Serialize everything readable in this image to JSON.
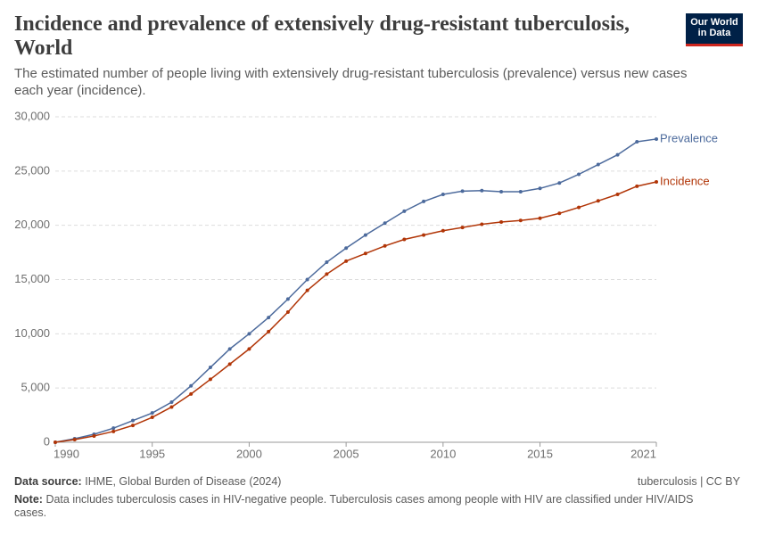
{
  "chart_data": {
    "type": "line",
    "title": "Incidence and prevalence of extensively drug-resistant tuberculosis, World",
    "subtitle": "The estimated number of people living with extensively drug-resistant tuberculosis (prevalence) versus new cases each year (incidence).",
    "logo": [
      "Our World",
      "in Data"
    ],
    "source_label": "Data source:",
    "source": "IHME, Global Burden of Disease (2024)",
    "license": "tuberculosis | CC BY",
    "note_label": "Note:",
    "note": "Data includes tuberculosis cases in HIV-negative people. Tuberculosis cases among people with HIV are classified under HIV/AIDS cases.",
    "x": [
      1990,
      1991,
      1992,
      1993,
      1994,
      1995,
      1996,
      1997,
      1998,
      1999,
      2000,
      2001,
      2002,
      2003,
      2004,
      2005,
      2006,
      2007,
      2008,
      2009,
      2010,
      2011,
      2012,
      2013,
      2014,
      2015,
      2016,
      2017,
      2018,
      2019,
      2020,
      2021
    ],
    "series": [
      {
        "name": "Prevalence",
        "color": "#4c6a9c",
        "values": [
          0,
          330,
          740,
          1300,
          2000,
          2700,
          3700,
          5200,
          6900,
          8600,
          10000,
          11500,
          13200,
          15000,
          16600,
          17900,
          19100,
          20200,
          21300,
          22200,
          22850,
          23150,
          23200,
          23100,
          23100,
          23400,
          23900,
          24700,
          25600,
          26500,
          27700,
          27950
        ]
      },
      {
        "name": "Incidence",
        "color": "#b13507",
        "values": [
          0,
          250,
          580,
          1000,
          1550,
          2300,
          3250,
          4450,
          5800,
          7200,
          8600,
          10200,
          12000,
          14000,
          15500,
          16700,
          17400,
          18100,
          18700,
          19100,
          19500,
          19800,
          20100,
          20300,
          20450,
          20650,
          21100,
          21650,
          22250,
          22850,
          23600,
          24000
        ]
      }
    ],
    "xlim": [
      1990,
      2021
    ],
    "xticks": [
      1990,
      1995,
      2000,
      2005,
      2010,
      2015,
      2021
    ],
    "ylim": [
      0,
      30000
    ],
    "yticks": [
      0,
      {
        "value": 5000,
        "label": "5,000"
      },
      {
        "value": 10000,
        "label": "10,000"
      },
      {
        "value": 15000,
        "label": "15,000"
      },
      {
        "value": 20000,
        "label": "20,000"
      },
      {
        "value": 25000,
        "label": "25,000"
      },
      {
        "value": 30000,
        "label": "30,000"
      }
    ],
    "grid": true
  }
}
